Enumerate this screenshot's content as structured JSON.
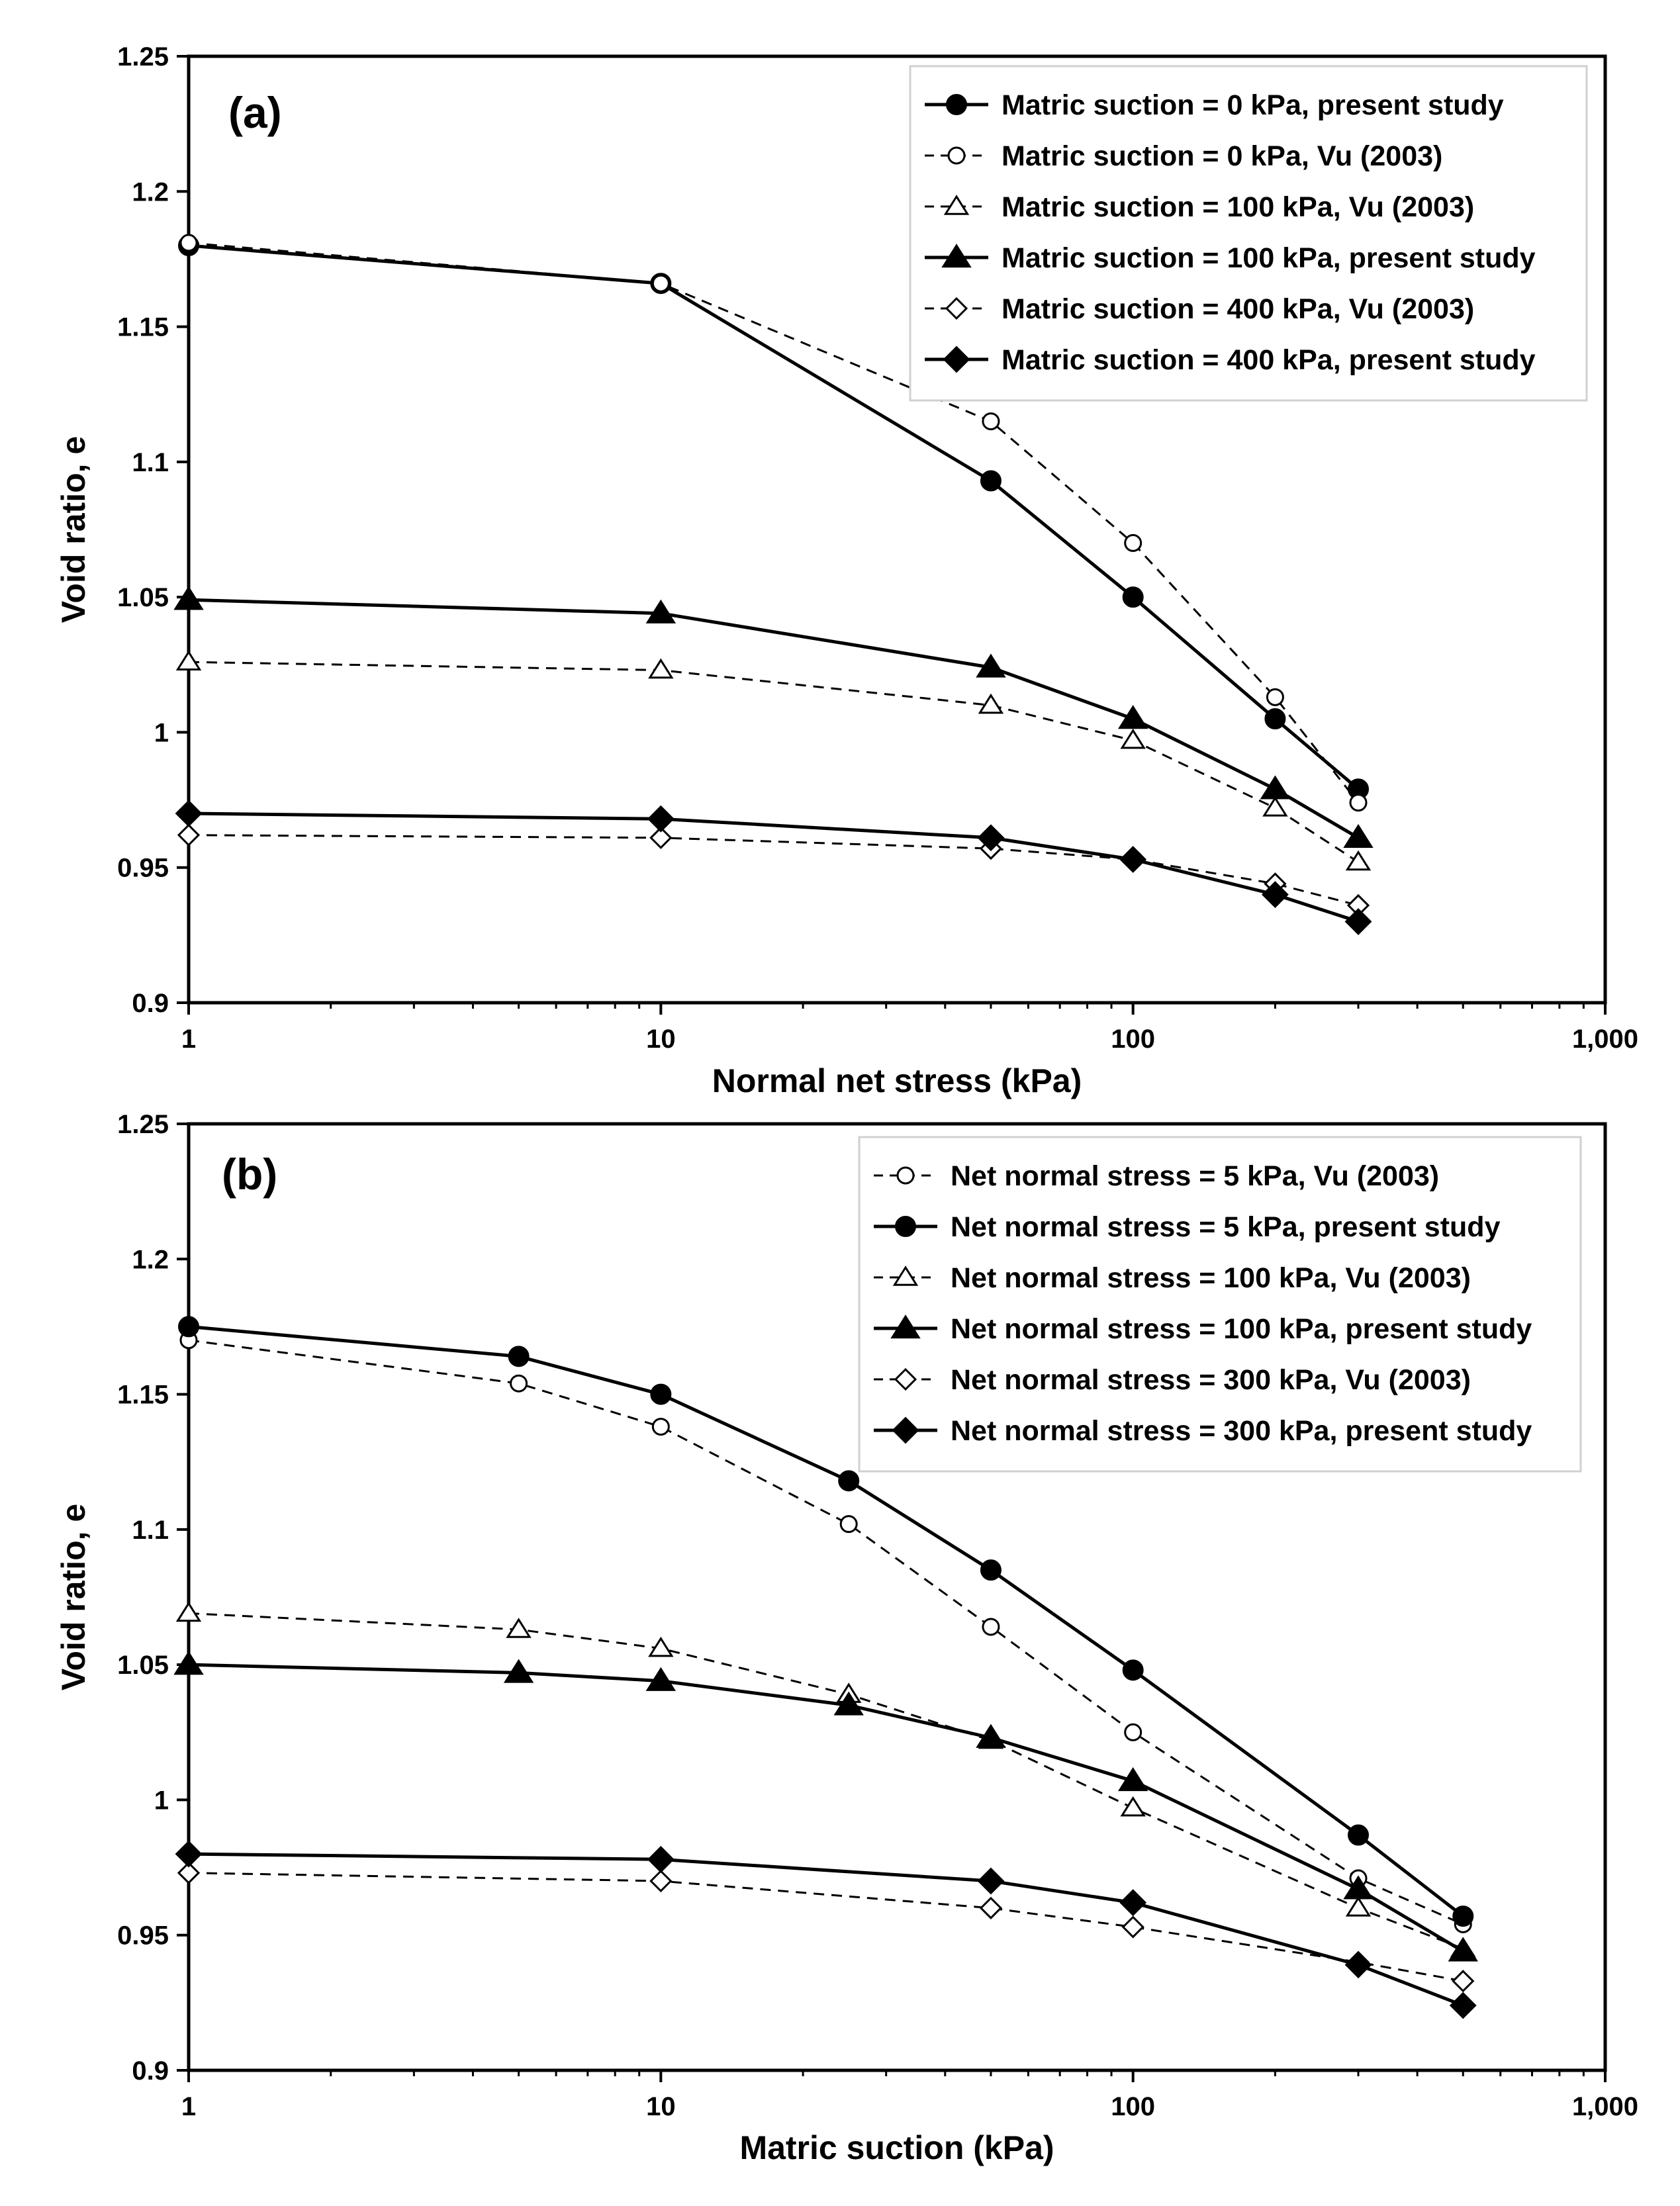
{
  "chart_data": [
    {
      "type": "line",
      "panel_label": "(a)",
      "xlabel": "Normal net stress (kPa)",
      "ylabel": "Void ratio, e",
      "xscale": "log",
      "xlim": [
        1,
        1000
      ],
      "ylim": [
        0.9,
        1.25
      ],
      "xticks": [
        1,
        10,
        100,
        1000
      ],
      "xtick_labels": [
        "1",
        "10",
        "100",
        "1,000"
      ],
      "yticks": [
        0.9,
        0.95,
        1.0,
        1.05,
        1.1,
        1.15,
        1.2,
        1.25
      ],
      "ytick_labels": [
        "0.9",
        "0.95",
        "1",
        "1.05",
        "1.1",
        "1.15",
        "1.2",
        "1.25"
      ],
      "grid": false,
      "legend_position": "top-right",
      "series": [
        {
          "name": "Matric suction = 0 kPa, present study",
          "marker": "circle",
          "filled": true,
          "dashed": false,
          "x": [
            1,
            10,
            50,
            100,
            200,
            300
          ],
          "y": [
            1.18,
            1.166,
            1.093,
            1.05,
            1.005,
            0.979
          ]
        },
        {
          "name": "Matric suction = 0 kPa, Vu (2003)",
          "marker": "circle",
          "filled": false,
          "dashed": true,
          "x": [
            1,
            10,
            50,
            100,
            200,
            300
          ],
          "y": [
            1.181,
            1.166,
            1.115,
            1.07,
            1.013,
            0.974
          ]
        },
        {
          "name": "Matric suction = 100 kPa, Vu (2003)",
          "marker": "triangle",
          "filled": false,
          "dashed": true,
          "x": [
            1,
            10,
            50,
            100,
            200,
            300
          ],
          "y": [
            1.026,
            1.023,
            1.01,
            0.997,
            0.972,
            0.952
          ]
        },
        {
          "name": "Matric suction = 100 kPa, present study",
          "marker": "triangle",
          "filled": true,
          "dashed": false,
          "x": [
            1,
            10,
            50,
            100,
            200,
            300
          ],
          "y": [
            1.049,
            1.044,
            1.024,
            1.005,
            0.979,
            0.961
          ]
        },
        {
          "name": "Matric suction = 400 kPa, Vu (2003)",
          "marker": "diamond",
          "filled": false,
          "dashed": true,
          "x": [
            1,
            10,
            50,
            100,
            200,
            300
          ],
          "y": [
            0.962,
            0.961,
            0.957,
            0.953,
            0.944,
            0.936
          ]
        },
        {
          "name": "Matric suction = 400 kPa, present study",
          "marker": "diamond",
          "filled": true,
          "dashed": false,
          "x": [
            1,
            10,
            50,
            100,
            200,
            300
          ],
          "y": [
            0.97,
            0.968,
            0.961,
            0.953,
            0.94,
            0.93
          ]
        }
      ]
    },
    {
      "type": "line",
      "panel_label": "(b)",
      "xlabel": "Matric suction (kPa)",
      "ylabel": "Void ratio, e",
      "xscale": "log",
      "xlim": [
        1,
        1000
      ],
      "ylim": [
        0.9,
        1.25
      ],
      "xticks": [
        1,
        10,
        100,
        1000
      ],
      "xtick_labels": [
        "1",
        "10",
        "100",
        "1,000"
      ],
      "yticks": [
        0.9,
        0.95,
        1.0,
        1.05,
        1.1,
        1.15,
        1.2,
        1.25
      ],
      "ytick_labels": [
        "0.9",
        "0.95",
        "1",
        "1.05",
        "1.1",
        "1.15",
        "1.2",
        "1.25"
      ],
      "grid": false,
      "legend_position": "top-right",
      "series": [
        {
          "name": "Net normal stress = 5 kPa, Vu (2003)",
          "marker": "circle",
          "filled": false,
          "dashed": true,
          "x": [
            1,
            5,
            10,
            25,
            50,
            100,
            300,
            500
          ],
          "y": [
            1.17,
            1.154,
            1.138,
            1.102,
            1.064,
            1.025,
            0.971,
            0.954
          ]
        },
        {
          "name": "Net normal stress = 5 kPa, present study",
          "marker": "circle",
          "filled": true,
          "dashed": false,
          "x": [
            1,
            5,
            10,
            25,
            50,
            100,
            300,
            500
          ],
          "y": [
            1.175,
            1.164,
            1.15,
            1.118,
            1.085,
            1.048,
            0.987,
            0.957
          ]
        },
        {
          "name": "Net normal stress = 100 kPa, Vu (2003)",
          "marker": "triangle",
          "filled": false,
          "dashed": true,
          "x": [
            1,
            5,
            10,
            25,
            50,
            100,
            300,
            500
          ],
          "y": [
            1.069,
            1.063,
            1.056,
            1.039,
            1.022,
            0.997,
            0.96,
            0.945
          ]
        },
        {
          "name": "Net normal stress = 100 kPa, present study",
          "marker": "triangle",
          "filled": true,
          "dashed": false,
          "x": [
            1,
            5,
            10,
            25,
            50,
            100,
            300,
            500
          ],
          "y": [
            1.05,
            1.047,
            1.044,
            1.035,
            1.023,
            1.007,
            0.967,
            0.944
          ]
        },
        {
          "name": "Net normal stress = 300 kPa, Vu (2003)",
          "marker": "diamond",
          "filled": false,
          "dashed": true,
          "x": [
            1,
            10,
            50,
            100,
            300,
            500
          ],
          "y": [
            0.973,
            0.97,
            0.96,
            0.953,
            0.94,
            0.933
          ]
        },
        {
          "name": "Net normal stress = 300 kPa, present study",
          "marker": "diamond",
          "filled": true,
          "dashed": false,
          "x": [
            1,
            10,
            50,
            100,
            300,
            500
          ],
          "y": [
            0.98,
            0.978,
            0.97,
            0.962,
            0.939,
            0.924
          ]
        }
      ]
    }
  ]
}
